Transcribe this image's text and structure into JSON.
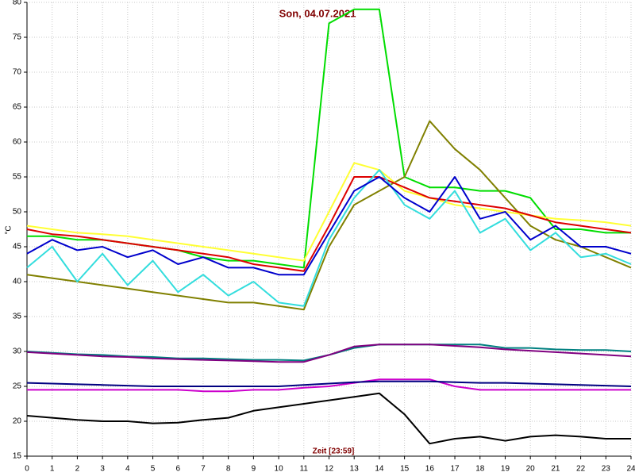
{
  "chart_data": {
    "type": "line",
    "title": "Son, 04.07.2021",
    "x_label": "Zeit [23:59]",
    "y_label": "°C",
    "x": [
      0,
      1,
      2,
      3,
      4,
      5,
      6,
      7,
      8,
      9,
      10,
      11,
      12,
      13,
      14,
      15,
      16,
      17,
      18,
      19,
      20,
      21,
      22,
      23,
      24
    ],
    "xlim": [
      0,
      24
    ],
    "xticks": [
      0,
      1,
      2,
      3,
      4,
      5,
      6,
      7,
      8,
      9,
      10,
      11,
      12,
      13,
      14,
      15,
      16,
      17,
      18,
      19,
      20,
      21,
      22,
      23,
      24
    ],
    "ylim": [
      15,
      80
    ],
    "yticks": [
      15,
      20,
      25,
      30,
      35,
      40,
      45,
      50,
      55,
      60,
      65,
      70,
      75,
      80
    ],
    "grid": true,
    "series": [
      {
        "color": "#00dd00",
        "values": [
          46.5,
          46.5,
          46,
          46,
          45.5,
          45,
          44.5,
          43.5,
          43,
          43,
          42.5,
          42,
          77,
          79,
          79,
          55,
          53.5,
          53.5,
          53,
          53,
          52,
          47.5,
          47.5,
          47,
          47
        ]
      },
      {
        "color": "#808000",
        "values": [
          41,
          40.5,
          40,
          39.5,
          39,
          38.5,
          38,
          37.5,
          37,
          37,
          36.5,
          36,
          45,
          51,
          53,
          55,
          63,
          59,
          56,
          52,
          48,
          46,
          45,
          43.5,
          42
        ]
      },
      {
        "color": "#ffff33",
        "values": [
          48,
          47.5,
          47,
          46.8,
          46.5,
          46,
          45.5,
          45,
          44.5,
          44,
          43.5,
          43,
          50,
          57,
          56,
          53,
          52,
          51,
          50.5,
          50,
          49.5,
          49,
          48.8,
          48.5,
          48
        ]
      },
      {
        "color": "#dd0000",
        "values": [
          47.5,
          46.8,
          46.5,
          46,
          45.5,
          45,
          44.5,
          44,
          43.5,
          42.5,
          42,
          41.5,
          48,
          55,
          55,
          53.5,
          52,
          51.5,
          51,
          50.5,
          49.5,
          48.5,
          48,
          47.5,
          47
        ]
      },
      {
        "color": "#33dddd",
        "values": [
          42,
          45,
          40,
          44,
          39.5,
          43,
          38.5,
          41,
          38,
          40,
          37,
          36.5,
          46,
          52,
          56,
          51,
          49,
          53,
          47,
          49,
          44.5,
          47,
          43.5,
          44,
          42.5
        ]
      },
      {
        "color": "#0000cc",
        "values": [
          44,
          46,
          44.5,
          45,
          43.5,
          44.5,
          42.5,
          43.5,
          42,
          42,
          41,
          41,
          47,
          53,
          55,
          52,
          50,
          55,
          49,
          50,
          46,
          48,
          45,
          45,
          44
        ]
      },
      {
        "color": "#008080",
        "values": [
          30,
          29.8,
          29.6,
          29.5,
          29.3,
          29.2,
          29,
          29,
          28.9,
          28.8,
          28.8,
          28.7,
          29.5,
          30.5,
          31,
          31,
          31,
          31,
          31,
          30.5,
          30.5,
          30.3,
          30.2,
          30.2,
          30
        ]
      },
      {
        "color": "#800080",
        "values": [
          29.9,
          29.7,
          29.5,
          29.3,
          29.2,
          29,
          28.9,
          28.8,
          28.7,
          28.6,
          28.5,
          28.5,
          29.5,
          30.7,
          31,
          31,
          31,
          30.8,
          30.6,
          30.3,
          30.1,
          29.9,
          29.7,
          29.5,
          29.3
        ]
      },
      {
        "color": "#cc00cc",
        "values": [
          24.5,
          24.5,
          24.5,
          24.5,
          24.5,
          24.5,
          24.5,
          24.3,
          24.3,
          24.5,
          24.5,
          24.8,
          25,
          25.5,
          26,
          26,
          26,
          25,
          24.5,
          24.5,
          24.5,
          24.5,
          24.5,
          24.5,
          24.5
        ]
      },
      {
        "color": "#000080",
        "values": [
          25.5,
          25.4,
          25.3,
          25.2,
          25.1,
          25,
          25,
          25,
          25,
          25,
          25,
          25.2,
          25.4,
          25.6,
          25.7,
          25.7,
          25.7,
          25.6,
          25.5,
          25.5,
          25.4,
          25.3,
          25.2,
          25.1,
          25
        ]
      },
      {
        "color": "#000000",
        "values": [
          20.8,
          20.5,
          20.2,
          20,
          20,
          19.7,
          19.8,
          20.2,
          20.5,
          21.5,
          22,
          22.5,
          23,
          23.5,
          24,
          21,
          16.8,
          17.5,
          17.8,
          17.2,
          17.8,
          18,
          17.8,
          17.5,
          17.5
        ]
      }
    ]
  }
}
